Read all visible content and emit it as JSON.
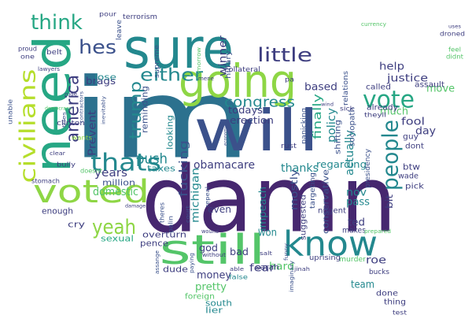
{
  "colors": {
    "dark_purple": "#46276f",
    "navy": "#3d3d7f",
    "slate": "#3b518b",
    "blue_grey": "#33638d",
    "teal_blue": "#2c718e",
    "teal": "#23888e",
    "sea_green": "#26a784",
    "green": "#54c569",
    "lime": "#8ed645",
    "yellow_green": "#b5de2b"
  },
  "words": [
    {
      "id": "im",
      "text": "im"
    },
    {
      "id": "damn",
      "text": "damn"
    },
    {
      "id": "will",
      "text": "will"
    },
    {
      "id": "sure",
      "text": "sure"
    },
    {
      "id": "going",
      "text": "going"
    },
    {
      "id": "need",
      "text": "need"
    },
    {
      "id": "voted",
      "text": "voted"
    },
    {
      "id": "still",
      "text": "still"
    },
    {
      "id": "know",
      "text": "know"
    },
    {
      "id": "civilians",
      "text": "civilians"
    },
    {
      "id": "thats",
      "text": "thats"
    },
    {
      "id": "vote",
      "text": "vote"
    },
    {
      "id": "people",
      "text": "people"
    },
    {
      "id": "think",
      "text": "think"
    },
    {
      "id": "either",
      "text": "either"
    },
    {
      "id": "little",
      "text": "little"
    },
    {
      "id": "yeah",
      "text": "yeah"
    },
    {
      "id": "hes",
      "text": "hes"
    },
    {
      "id": "america",
      "text": "america"
    },
    {
      "id": "trump",
      "text": "trump"
    },
    {
      "id": "congress",
      "text": "congress"
    },
    {
      "id": "push",
      "text": "push"
    },
    {
      "id": "obamacare",
      "text": "obamacare"
    },
    {
      "id": "fucking",
      "text": "fucking"
    },
    {
      "id": "michigan",
      "text": "michigan"
    },
    {
      "id": "domestic",
      "text": "domestic"
    },
    {
      "id": "years",
      "text": "years"
    },
    {
      "id": "prevent",
      "text": "Prevent"
    },
    {
      "id": "winner",
      "text": "winner"
    },
    {
      "id": "based",
      "text": "based"
    },
    {
      "id": "help",
      "text": "help"
    },
    {
      "id": "justice",
      "text": "justice"
    },
    {
      "id": "move",
      "text": "move"
    },
    {
      "id": "much",
      "text": "much"
    },
    {
      "id": "fool",
      "text": "fool"
    },
    {
      "id": "day",
      "text": "day"
    },
    {
      "id": "finally",
      "text": "finally"
    },
    {
      "id": "policy",
      "text": "policy"
    },
    {
      "id": "actually",
      "text": "actually"
    },
    {
      "id": "thanks",
      "text": "thanks"
    },
    {
      "id": "regarding",
      "text": "regarding"
    },
    {
      "id": "bit",
      "text": "bit"
    },
    {
      "id": "btw",
      "text": "btw"
    },
    {
      "id": "nov",
      "text": "nov"
    },
    {
      "id": "pass",
      "text": "pass"
    },
    {
      "id": "ted",
      "text": "ted"
    },
    {
      "id": "won",
      "text": "won"
    },
    {
      "id": "roe",
      "text": "roe"
    },
    {
      "id": "team",
      "text": "team"
    },
    {
      "id": "money",
      "text": "money"
    },
    {
      "id": "pretty",
      "text": "pretty"
    },
    {
      "id": "fear",
      "text": "fear"
    },
    {
      "id": "hard",
      "text": "hard"
    },
    {
      "id": "bad",
      "text": "bad"
    },
    {
      "id": "even",
      "text": "even"
    },
    {
      "id": "god",
      "text": "god"
    },
    {
      "id": "impeach",
      "text": "impeach"
    },
    {
      "id": "mostly",
      "text": "mostly"
    },
    {
      "id": "erection",
      "text": "erection"
    },
    {
      "id": "todays",
      "text": "todays"
    },
    {
      "id": "conservative",
      "text": "conservative"
    },
    {
      "id": "suggested",
      "text": "suggested"
    },
    {
      "id": "brags",
      "text": "brags"
    },
    {
      "id": "lose",
      "text": "lose"
    },
    {
      "id": "reminding",
      "text": "reminding"
    },
    {
      "id": "looking",
      "text": "looking"
    },
    {
      "id": "taxes",
      "text": "taxes"
    },
    {
      "id": "million",
      "text": "million"
    },
    {
      "id": "enough",
      "text": "enough"
    },
    {
      "id": "cry",
      "text": "cry"
    },
    {
      "id": "sexual",
      "text": "sexual"
    },
    {
      "id": "overturn",
      "text": "overturn"
    },
    {
      "id": "pence",
      "text": "pence"
    },
    {
      "id": "dude",
      "text": "dude"
    },
    {
      "id": "south",
      "text": "south"
    },
    {
      "id": "lier",
      "text": "lier"
    },
    {
      "id": "foreign",
      "text": "foreign"
    },
    {
      "id": "sarah",
      "text": "sarah"
    },
    {
      "id": "nugent",
      "text": "nugent"
    },
    {
      "id": "makes",
      "text": "makes"
    },
    {
      "id": "done",
      "text": "done"
    },
    {
      "id": "thing",
      "text": "thing"
    },
    {
      "id": "test",
      "text": "test"
    },
    {
      "id": "bucks",
      "text": "bucks"
    },
    {
      "id": "murder",
      "text": "murder"
    },
    {
      "id": "uprising",
      "text": "uprising"
    },
    {
      "id": "wade",
      "text": "wade"
    },
    {
      "id": "pick",
      "text": "pick"
    },
    {
      "id": "dont",
      "text": "dont"
    },
    {
      "id": "guy",
      "text": "guy"
    },
    {
      "id": "called",
      "text": "called"
    },
    {
      "id": "already",
      "text": "already"
    },
    {
      "id": "assault",
      "text": "assault"
    },
    {
      "id": "theyll",
      "text": "theyll"
    },
    {
      "id": "shifting",
      "text": "shifting"
    },
    {
      "id": "sociopath",
      "text": "sociopath"
    },
    {
      "id": "presidency",
      "text": "presidency"
    },
    {
      "id": "targeting",
      "text": "targeting"
    },
    {
      "id": "panicking",
      "text": "panicking"
    },
    {
      "id": "rust",
      "text": "rust"
    },
    {
      "id": "relations",
      "text": "relations"
    },
    {
      "id": "sick",
      "text": "sick"
    },
    {
      "id": "collateral",
      "text": "collateral"
    },
    {
      "id": "terrorism",
      "text": "terrorism"
    },
    {
      "id": "supreme",
      "text": "supreme"
    },
    {
      "id": "leave",
      "text": "leave"
    },
    {
      "id": "pour",
      "text": "pour"
    },
    {
      "id": "hillary",
      "text": "hillary"
    },
    {
      "id": "tomorrow",
      "text": "tomorrow"
    },
    {
      "id": "belt",
      "text": "belt"
    },
    {
      "id": "proud",
      "text": "proud"
    },
    {
      "id": "one",
      "text": "one"
    },
    {
      "id": "unable",
      "text": "unable"
    },
    {
      "id": "clinton",
      "text": "clinton"
    },
    {
      "id": "wants",
      "text": "wants"
    },
    {
      "id": "doesnt",
      "text": "doesnt"
    },
    {
      "id": "stomach",
      "text": "stomach"
    },
    {
      "id": "bully",
      "text": "bully"
    },
    {
      "id": "clear",
      "text": "clear"
    },
    {
      "id": "lawyers",
      "text": "lawyers"
    },
    {
      "id": "democracy",
      "text": "democracy"
    },
    {
      "id": "inevitably",
      "text": "inevitably"
    },
    {
      "id": "contractors",
      "text": "contractors"
    },
    {
      "id": "palin",
      "text": "palin"
    },
    {
      "id": "theres",
      "text": "theres"
    },
    {
      "id": "repeal",
      "text": "repeal"
    },
    {
      "id": "court",
      "text": "court"
    },
    {
      "id": "assange",
      "text": "assange"
    },
    {
      "id": "paying",
      "text": "paying"
    },
    {
      "id": "without",
      "text": "without"
    },
    {
      "id": "false",
      "text": "false"
    },
    {
      "id": "wound",
      "text": "wound"
    },
    {
      "id": "salt",
      "text": "salt"
    },
    {
      "id": "imaginary",
      "text": "imaginary"
    },
    {
      "id": "funny",
      "text": "funny"
    },
    {
      "id": "able",
      "text": "able"
    },
    {
      "id": "jinah",
      "text": "jinah"
    },
    {
      "id": "prepared",
      "text": "prepared"
    },
    {
      "id": "droned",
      "text": "droned"
    },
    {
      "id": "feel",
      "text": "feel"
    },
    {
      "id": "didnt",
      "text": "didnt"
    },
    {
      "id": "uses",
      "text": "uses"
    },
    {
      "id": "pa",
      "text": "pa"
    },
    {
      "id": "damage",
      "text": "damage"
    },
    {
      "id": "rude",
      "text": "rude"
    },
    {
      "id": "tries",
      "text": "tries"
    },
    {
      "id": "economy",
      "text": "economy"
    },
    {
      "id": "wind",
      "text": "wind"
    },
    {
      "id": "currency",
      "text": "currency"
    },
    {
      "id": "mene",
      "text": "mene"
    }
  ]
}
